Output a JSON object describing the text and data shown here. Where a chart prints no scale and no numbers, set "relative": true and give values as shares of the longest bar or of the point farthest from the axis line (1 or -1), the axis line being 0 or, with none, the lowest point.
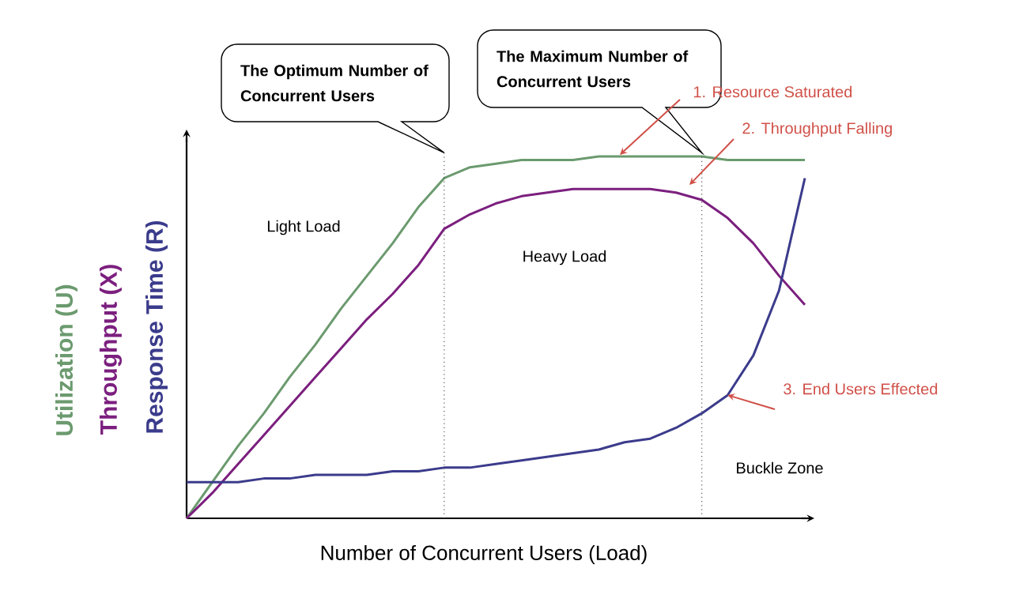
{
  "chart_data": {
    "type": "line",
    "relative": true,
    "xlabel": "Number of  Concurrent Users (Load)",
    "categories": [
      null,
      null,
      null,
      null,
      null,
      null,
      null,
      null,
      null,
      null,
      null,
      null,
      null,
      null,
      null,
      null,
      null,
      null,
      null,
      null,
      null,
      null,
      null,
      null,
      null
    ],
    "series": [
      {
        "name": "Utilization (U)",
        "color": "#6b9a6e",
        "values": [
          0,
          0.1,
          0.2,
          0.29,
          0.39,
          0.48,
          0.58,
          0.67,
          0.76,
          0.86,
          0.94,
          0.97,
          0.98,
          0.99,
          0.99,
          0.99,
          1,
          1,
          1,
          1,
          1,
          0.99,
          0.99,
          0.99,
          0.99
        ]
      },
      {
        "name": "Throughput (X)",
        "color": "#7b1f7e",
        "values": [
          0,
          0.07,
          0.15,
          0.23,
          0.31,
          0.39,
          0.47,
          0.55,
          0.62,
          0.7,
          0.8,
          0.84,
          0.87,
          0.89,
          0.9,
          0.91,
          0.91,
          0.91,
          0.91,
          0.9,
          0.88,
          0.83,
          0.76,
          0.67,
          0.59
        ]
      },
      {
        "name": "Response Time (R)",
        "color": "#3b3b8c",
        "values": [
          0.1,
          0.1,
          0.1,
          0.11,
          0.11,
          0.12,
          0.12,
          0.12,
          0.13,
          0.13,
          0.14,
          0.14,
          0.15,
          0.16,
          0.17,
          0.18,
          0.19,
          0.21,
          0.22,
          0.25,
          0.29,
          0.34,
          0.45,
          0.63,
          0.94
        ]
      }
    ],
    "annotations": [
      "The Optimum Number of Concurrent Users",
      "The Maximum Number of Concurrent Users",
      "Light Load",
      "Heavy Load",
      "Buckle Zone",
      "1. Resource Saturated",
      "2. Throughput Falling",
      "3. End Users Effected"
    ],
    "line_style": "solid",
    "marker": "none"
  }
}
